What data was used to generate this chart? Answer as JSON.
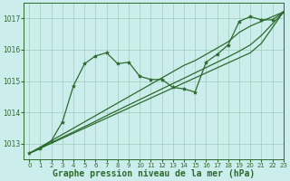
{
  "background_color": "#cbeeed",
  "plot_bg_color": "#cbeeed",
  "grid_color": "#a0ccbb",
  "line_color": "#2d6a2d",
  "xlabel": "Graphe pression niveau de la mer (hPa)",
  "xlabel_fontsize": 7,
  "xlim": [
    -0.5,
    23
  ],
  "ylim": [
    1012.5,
    1017.5
  ],
  "yticks": [
    1013,
    1014,
    1015,
    1016,
    1017
  ],
  "xticks": [
    0,
    1,
    2,
    3,
    4,
    5,
    6,
    7,
    8,
    9,
    10,
    11,
    12,
    13,
    14,
    15,
    16,
    17,
    18,
    19,
    20,
    21,
    22,
    23
  ],
  "wavy_series": [
    1012.7,
    1012.85,
    1013.1,
    1013.7,
    1014.85,
    1015.55,
    1015.8,
    1015.9,
    1015.55,
    1015.6,
    1015.15,
    1015.05,
    1015.05,
    1014.8,
    1014.75,
    1014.65,
    1015.6,
    1015.85,
    1016.15,
    1016.9,
    1017.05,
    1016.95,
    1016.95,
    1017.2
  ],
  "linear_series": [
    [
      1012.7,
      1012.9,
      1013.1,
      1013.3,
      1013.5,
      1013.7,
      1013.9,
      1014.1,
      1014.3,
      1014.5,
      1014.7,
      1014.9,
      1015.1,
      1015.3,
      1015.5,
      1015.65,
      1015.85,
      1016.05,
      1016.25,
      1016.55,
      1016.75,
      1016.9,
      1017.05,
      1017.2
    ],
    [
      1012.7,
      1012.87,
      1013.04,
      1013.21,
      1013.38,
      1013.55,
      1013.72,
      1013.9,
      1014.07,
      1014.24,
      1014.41,
      1014.58,
      1014.75,
      1014.92,
      1015.09,
      1015.26,
      1015.43,
      1015.6,
      1015.77,
      1015.95,
      1016.15,
      1016.45,
      1016.82,
      1017.2
    ],
    [
      1012.7,
      1012.86,
      1013.02,
      1013.18,
      1013.34,
      1013.5,
      1013.66,
      1013.82,
      1013.98,
      1014.14,
      1014.3,
      1014.46,
      1014.62,
      1014.78,
      1014.94,
      1015.1,
      1015.26,
      1015.42,
      1015.58,
      1015.74,
      1015.9,
      1016.2,
      1016.7,
      1017.2
    ]
  ],
  "marker": "*",
  "markersize": 3,
  "linewidth": 0.9
}
